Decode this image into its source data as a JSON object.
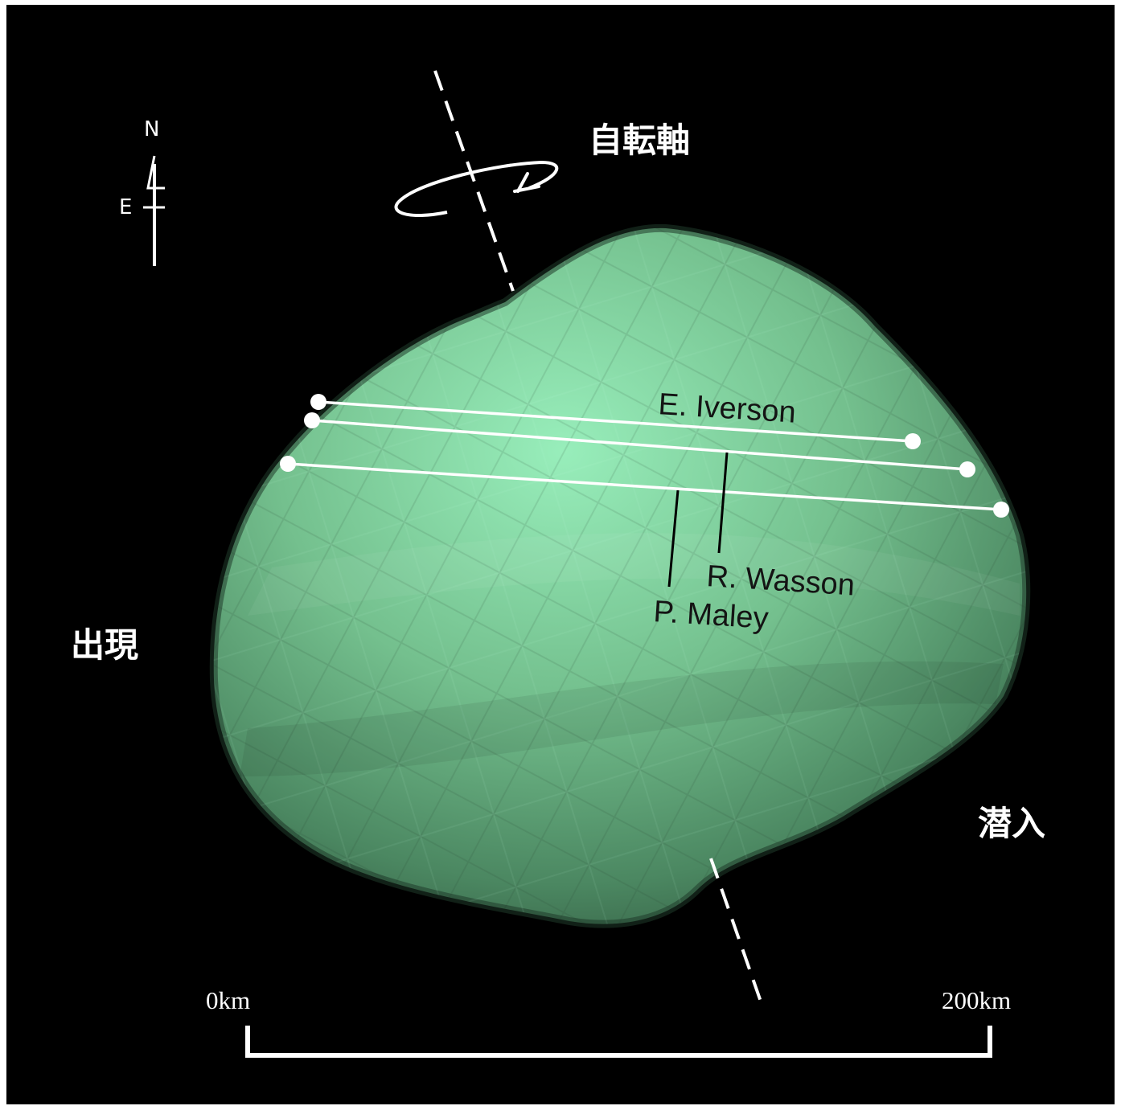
{
  "labels": {
    "rotation_axis": "自転軸",
    "appearance": "出現",
    "disappearance": "潜入",
    "north": "N",
    "east": "E"
  },
  "observers": [
    "E. Iverson",
    "R. Wasson",
    "P. Maley"
  ],
  "scale_bar": {
    "start_label": "0km",
    "end_label": "200km",
    "length_km": 200
  },
  "colors": {
    "background": "#000000",
    "body_light": "#98eebb",
    "body_dark": "#2f5a3e",
    "chord": "#ffffff",
    "text": "#ffffff",
    "observer_text": "#141414"
  }
}
